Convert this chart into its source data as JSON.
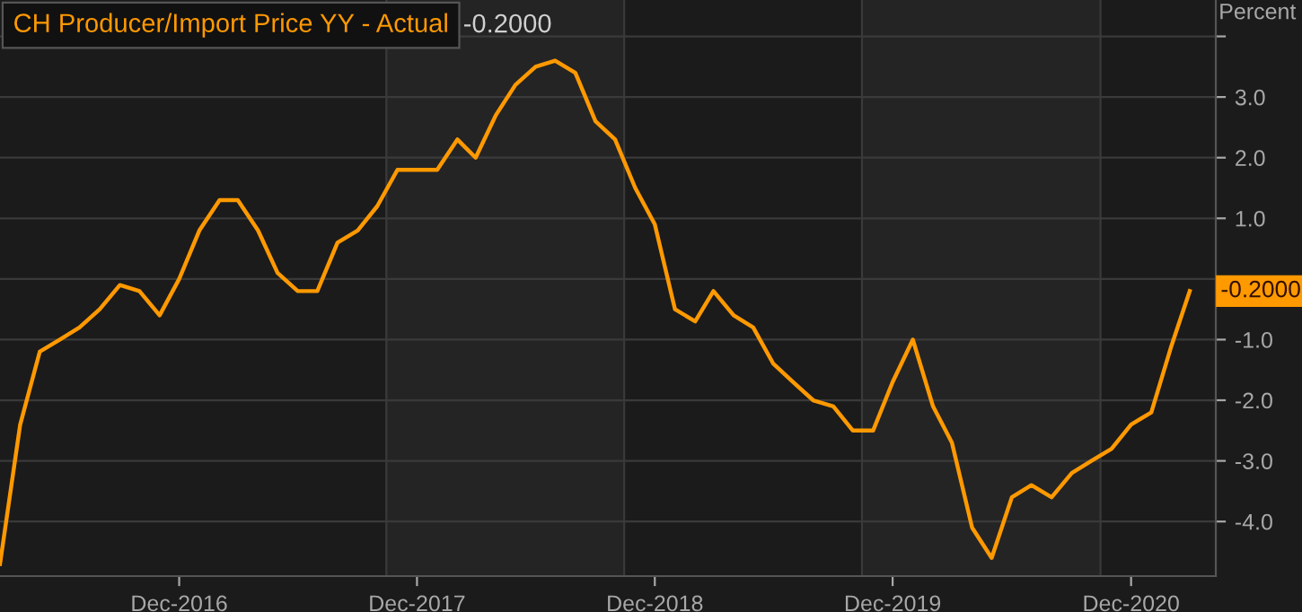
{
  "chart_data": {
    "type": "line",
    "x": [
      "2016-03",
      "2016-04",
      "2016-05",
      "2016-06",
      "2016-07",
      "2016-08",
      "2016-09",
      "2016-10",
      "2016-11",
      "2016-12",
      "2017-01",
      "2017-02",
      "2017-03",
      "2017-04",
      "2017-05",
      "2017-06",
      "2017-07",
      "2017-08",
      "2017-09",
      "2017-10",
      "2017-11",
      "2017-12",
      "2018-01",
      "2018-02",
      "2018-03",
      "2018-04",
      "2018-05",
      "2018-06",
      "2018-07",
      "2018-08",
      "2018-09",
      "2018-10",
      "2018-11",
      "2018-12",
      "2019-01",
      "2019-02",
      "2019-03",
      "2019-04",
      "2019-05",
      "2019-06",
      "2019-07",
      "2019-08",
      "2019-09",
      "2019-10",
      "2019-11",
      "2019-12",
      "2020-01",
      "2020-02",
      "2020-03",
      "2020-04",
      "2020-05",
      "2020-06",
      "2020-07",
      "2020-08",
      "2020-09",
      "2020-10",
      "2020-11",
      "2020-12",
      "2021-01",
      "2021-02",
      "2021-03"
    ],
    "series": [
      {
        "name": "CH Producer/Import Price YY - Actual",
        "color": "#ff9900",
        "values": [
          -4.7,
          -2.4,
          -1.2,
          -1.0,
          -0.8,
          -0.5,
          -0.1,
          -0.2,
          -0.6,
          0.0,
          0.8,
          1.3,
          1.3,
          0.8,
          0.1,
          -0.2,
          -0.2,
          0.6,
          0.8,
          1.2,
          1.8,
          1.8,
          1.8,
          2.3,
          2.0,
          2.7,
          3.2,
          3.5,
          3.6,
          3.4,
          2.6,
          2.3,
          1.5,
          0.9,
          -0.5,
          -0.7,
          -0.2,
          -0.6,
          -0.8,
          -1.4,
          -1.7,
          -2.0,
          -2.1,
          -2.5,
          -2.5,
          -1.7,
          -1.0,
          -2.1,
          -2.7,
          -4.1,
          -4.6,
          -3.6,
          -3.4,
          -3.6,
          -3.2,
          -3.0,
          -2.8,
          -2.4,
          -2.2,
          -1.1,
          -0.2
        ]
      }
    ],
    "ylabel": "Percent",
    "xlim": [
      "2016-03-01",
      "2021-04-10"
    ],
    "xticks": [
      {
        "value": "2016-12",
        "label": "Dec-2016"
      },
      {
        "value": "2017-12",
        "label": "Dec-2017"
      },
      {
        "value": "2018-12",
        "label": "Dec-2018"
      },
      {
        "value": "2019-12",
        "label": "Dec-2019"
      },
      {
        "value": "2020-12",
        "label": "Dec-2020"
      }
    ],
    "ylim": [
      -4.9,
      4.6
    ],
    "yticks": [
      {
        "value": -4,
        "label": "-4.0"
      },
      {
        "value": -3,
        "label": "-3.0"
      },
      {
        "value": -2,
        "label": "-2.0"
      },
      {
        "value": -1,
        "label": "-1.0"
      },
      {
        "value": 0,
        "label": null
      },
      {
        "value": 1,
        "label": "1.0"
      },
      {
        "value": 2,
        "label": "2.0"
      },
      {
        "value": 3,
        "label": "3.0"
      },
      {
        "value": 4,
        "label": null
      }
    ],
    "bands": [
      {
        "axis": "x",
        "from": "2017-10-15",
        "to": "2018-10-15",
        "color": "#242424"
      },
      {
        "axis": "x",
        "from": "2019-10-15",
        "to": "2020-10-15",
        "color": "#242424"
      }
    ],
    "annotations": [
      "-0.2000",
      {
        "text": "-0.2000",
        "x": "2021-03",
        "y": -0.2
      }
    ],
    "grid": "y",
    "legend": "top left",
    "marker": "none",
    "line_style": "solid"
  }
}
